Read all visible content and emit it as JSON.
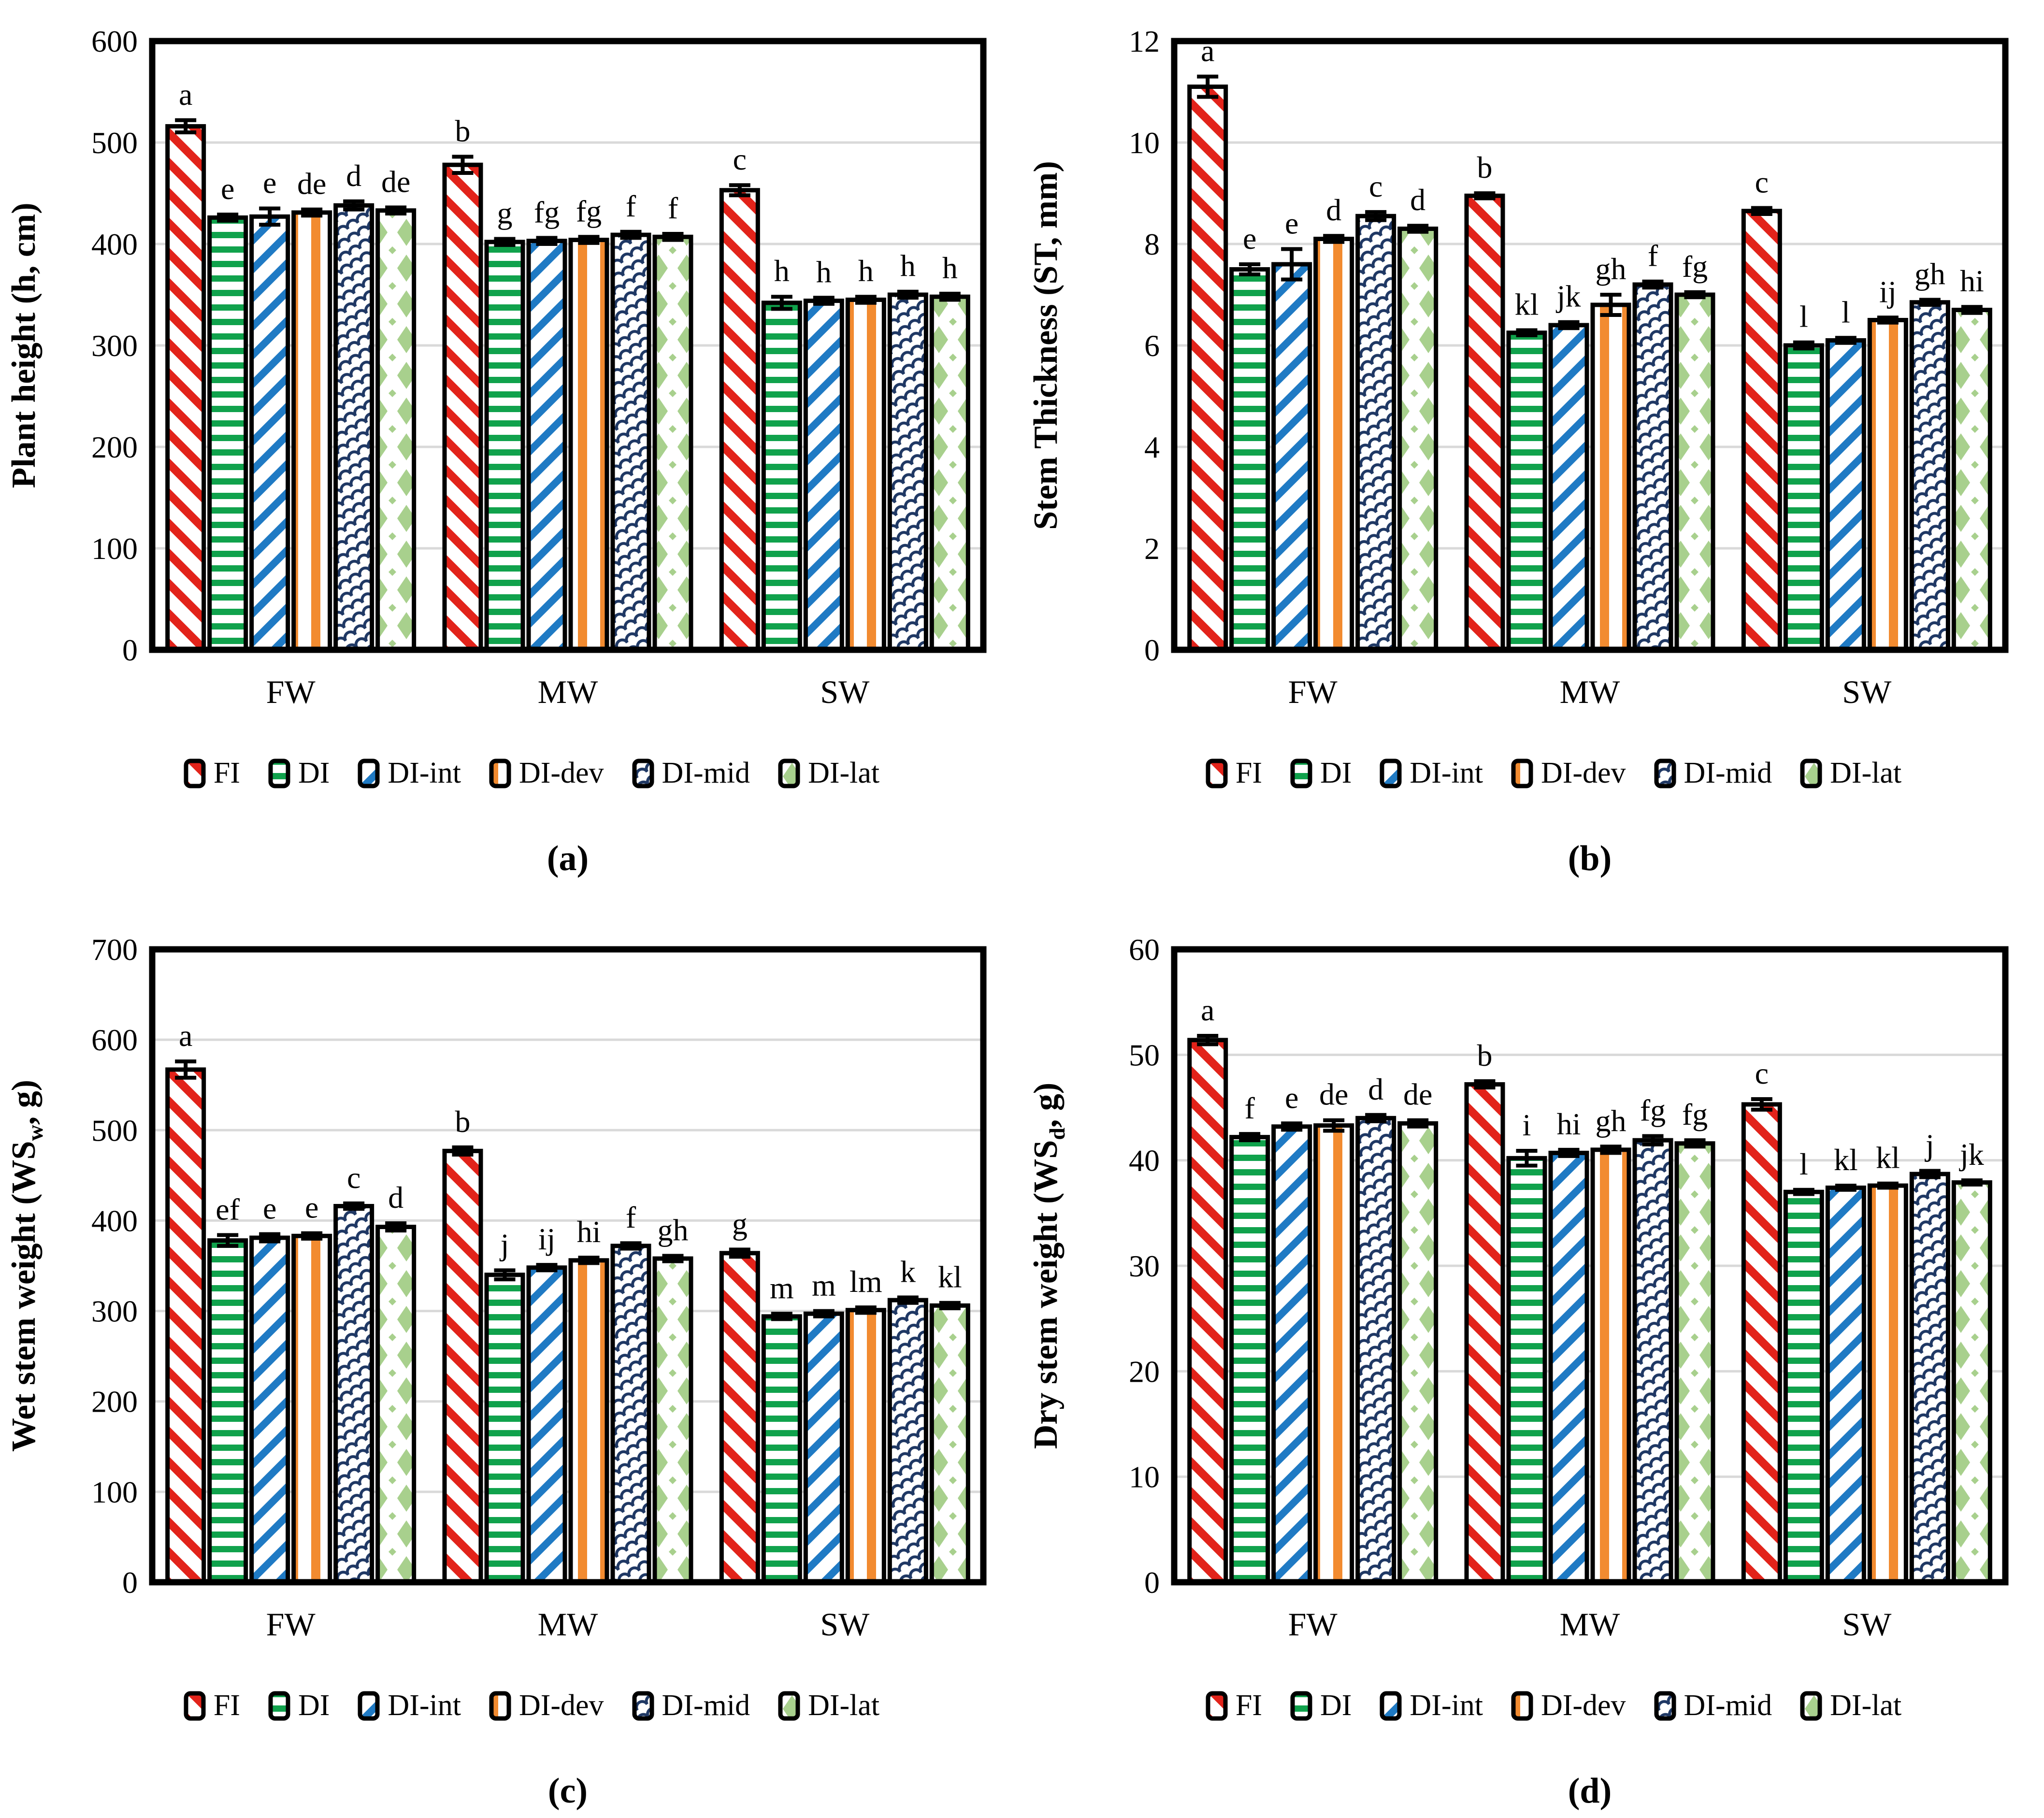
{
  "figure": {
    "background": "#ffffff",
    "categories": [
      "FW",
      "MW",
      "SW"
    ],
    "legend_position": "bottom",
    "grid": "horizontal-light-gray"
  },
  "colors": {
    "fi_red": "#E2231A",
    "di_green": "#10A24C",
    "diint_blue": "#1F7AC4",
    "didev_orange": "#F28B30",
    "dimid_navy": "#1F3864",
    "dilat_lightgreen": "#A8D08D",
    "gridline": "#D9D9D9",
    "axis": "#000000"
  },
  "legend": [
    {
      "label": "FI",
      "pattern": "fi",
      "swatch_icon": "red-diagonal-stripes-icon"
    },
    {
      "label": "DI",
      "pattern": "di",
      "swatch_icon": "green-horizontal-stripes-icon"
    },
    {
      "label": "DI-int",
      "pattern": "diint",
      "swatch_icon": "blue-diagonal-stripes-icon"
    },
    {
      "label": "DI-dev",
      "pattern": "didev",
      "swatch_icon": "orange-vertical-stripes-icon"
    },
    {
      "label": "DI-mid",
      "pattern": "dimid",
      "swatch_icon": "navy-shingle-pattern-icon"
    },
    {
      "label": "DI-lat",
      "pattern": "dilat",
      "swatch_icon": "lightgreen-diamond-pattern-icon"
    }
  ],
  "chart_data": [
    {
      "type": "bar",
      "caption": "a",
      "ylabel": {
        "pre": "Plant height (h, cm)",
        "sub": "",
        "post": ""
      },
      "ylim": [
        0,
        600
      ],
      "ystep": 100,
      "categories": [
        "FW",
        "MW",
        "SW"
      ],
      "series": [
        {
          "name": "FI",
          "values": [
            516,
            478,
            453
          ],
          "errors": [
            6,
            8,
            5
          ],
          "letters": [
            "a",
            "b",
            "c"
          ]
        },
        {
          "name": "DI",
          "values": [
            426,
            402,
            342
          ],
          "errors": [
            3,
            3,
            6
          ],
          "letters": [
            "e",
            "g",
            "h"
          ]
        },
        {
          "name": "DI-int",
          "values": [
            427,
            403,
            344
          ],
          "errors": [
            8,
            3,
            3
          ],
          "letters": [
            "e",
            "fg",
            "h"
          ]
        },
        {
          "name": "DI-dev",
          "values": [
            431,
            404,
            345
          ],
          "errors": [
            3,
            3,
            3
          ],
          "letters": [
            "de",
            "fg",
            "h"
          ]
        },
        {
          "name": "DI-mid",
          "values": [
            438,
            409,
            350
          ],
          "errors": [
            4,
            3,
            3
          ],
          "letters": [
            "d",
            "f",
            "h"
          ]
        },
        {
          "name": "DI-lat",
          "values": [
            433,
            407,
            348
          ],
          "errors": [
            3,
            3,
            3
          ],
          "letters": [
            "de",
            "f",
            "h"
          ]
        }
      ]
    },
    {
      "type": "bar",
      "caption": "b",
      "ylabel": {
        "pre": "Stem Thickness (ST, mm)",
        "sub": "",
        "post": ""
      },
      "ylim": [
        0,
        12
      ],
      "ystep": 2,
      "categories": [
        "FW",
        "MW",
        "SW"
      ],
      "series": [
        {
          "name": "FI",
          "values": [
            11.1,
            8.95,
            8.65
          ],
          "errors": [
            0.2,
            0.05,
            0.06
          ],
          "letters": [
            "a",
            "b",
            "c"
          ]
        },
        {
          "name": "DI",
          "values": [
            7.5,
            6.25,
            6.0
          ],
          "errors": [
            0.1,
            0.05,
            0.06
          ],
          "letters": [
            "e",
            "kl",
            "l"
          ]
        },
        {
          "name": "DI-int",
          "values": [
            7.6,
            6.4,
            6.1
          ],
          "errors": [
            0.3,
            0.06,
            0.05
          ],
          "letters": [
            "e",
            "jk",
            "l"
          ]
        },
        {
          "name": "DI-dev",
          "values": [
            8.1,
            6.8,
            6.5
          ],
          "errors": [
            0.06,
            0.2,
            0.05
          ],
          "letters": [
            "d",
            "gh",
            "ij"
          ]
        },
        {
          "name": "DI-mid",
          "values": [
            8.55,
            7.2,
            6.85
          ],
          "errors": [
            0.08,
            0.06,
            0.05
          ],
          "letters": [
            "c",
            "f",
            "gh"
          ]
        },
        {
          "name": "DI-lat",
          "values": [
            8.3,
            7.0,
            6.7
          ],
          "errors": [
            0.06,
            0.05,
            0.06
          ],
          "letters": [
            "d",
            "fg",
            "hi"
          ]
        }
      ]
    },
    {
      "type": "bar",
      "caption": "c",
      "ylabel": {
        "pre": "Wet stem weight (WS",
        "sub": "w",
        "post": ", g)"
      },
      "ylim": [
        0,
        700
      ],
      "ystep": 100,
      "categories": [
        "FW",
        "MW",
        "SW"
      ],
      "series": [
        {
          "name": "FI",
          "values": [
            567,
            477,
            364
          ],
          "errors": [
            9,
            4,
            4
          ],
          "letters": [
            "a",
            "b",
            "g"
          ]
        },
        {
          "name": "DI",
          "values": [
            378,
            340,
            294
          ],
          "errors": [
            6,
            5,
            3
          ],
          "letters": [
            "ef",
            "j",
            "m"
          ]
        },
        {
          "name": "DI-int",
          "values": [
            381,
            348,
            297
          ],
          "errors": [
            4,
            3,
            3
          ],
          "letters": [
            "e",
            "ij",
            "m"
          ]
        },
        {
          "name": "DI-dev",
          "values": [
            383,
            356,
            301
          ],
          "errors": [
            3,
            3,
            3
          ],
          "letters": [
            "e",
            "hi",
            "lm"
          ]
        },
        {
          "name": "DI-mid",
          "values": [
            416,
            372,
            312
          ],
          "errors": [
            3,
            3,
            3
          ],
          "letters": [
            "c",
            "f",
            "k"
          ]
        },
        {
          "name": "DI-lat",
          "values": [
            393,
            358,
            306
          ],
          "errors": [
            4,
            3,
            3
          ],
          "letters": [
            "d",
            "gh",
            "kl"
          ]
        }
      ]
    },
    {
      "type": "bar",
      "caption": "d",
      "ylabel": {
        "pre": "Dry stem weight (WS",
        "sub": "d",
        "post": ", g)"
      },
      "ylim": [
        0,
        60
      ],
      "ystep": 10,
      "categories": [
        "FW",
        "MW",
        "SW"
      ],
      "series": [
        {
          "name": "FI",
          "values": [
            51.4,
            47.2,
            45.3
          ],
          "errors": [
            0.4,
            0.3,
            0.5
          ],
          "letters": [
            "a",
            "b",
            "c"
          ]
        },
        {
          "name": "DI",
          "values": [
            42.2,
            40.2,
            37.0
          ],
          "errors": [
            0.3,
            0.7,
            0.2
          ],
          "letters": [
            "f",
            "i",
            "l"
          ]
        },
        {
          "name": "DI-int",
          "values": [
            43.2,
            40.7,
            37.4
          ],
          "errors": [
            0.3,
            0.3,
            0.2
          ],
          "letters": [
            "e",
            "hi",
            "kl"
          ]
        },
        {
          "name": "DI-dev",
          "values": [
            43.3,
            41.0,
            37.6
          ],
          "errors": [
            0.5,
            0.3,
            0.2
          ],
          "letters": [
            "de",
            "gh",
            "kl"
          ]
        },
        {
          "name": "DI-mid",
          "values": [
            44.0,
            41.9,
            38.7
          ],
          "errors": [
            0.3,
            0.4,
            0.3
          ],
          "letters": [
            "d",
            "fg",
            "j"
          ]
        },
        {
          "name": "DI-lat",
          "values": [
            43.5,
            41.6,
            37.9
          ],
          "errors": [
            0.3,
            0.3,
            0.2
          ],
          "letters": [
            "de",
            "fg",
            "jk"
          ]
        }
      ]
    }
  ]
}
